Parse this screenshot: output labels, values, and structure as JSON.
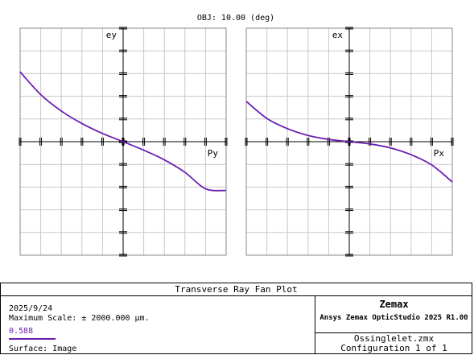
{
  "header": {
    "field_label": "OBJ: 10.00 (deg)"
  },
  "colors": {
    "curve": "#6a1fb0",
    "grid": "#c8c8c8",
    "axis": "#000000"
  },
  "chart_data": [
    {
      "type": "line",
      "title": "",
      "xlabel": "Py",
      "ylabel": "ey",
      "xlim": [
        -1,
        1
      ],
      "ylim": [
        -2000,
        2000
      ],
      "grid": true,
      "series": [
        {
          "name": "0.588",
          "x": [
            -1.0,
            -0.8,
            -0.6,
            -0.4,
            -0.2,
            0.0,
            0.2,
            0.4,
            0.6,
            0.8,
            1.0
          ],
          "y": [
            1230,
            830,
            540,
            320,
            145,
            0,
            -150,
            -320,
            -540,
            -830,
            -860
          ]
        }
      ]
    },
    {
      "type": "line",
      "title": "",
      "xlabel": "Px",
      "ylabel": "ex",
      "xlim": [
        -1,
        1
      ],
      "ylim": [
        -2000,
        2000
      ],
      "grid": true,
      "series": [
        {
          "name": "0.588",
          "x": [
            -1.0,
            -0.8,
            -0.6,
            -0.4,
            -0.2,
            0.0,
            0.2,
            0.4,
            0.6,
            0.8,
            1.0
          ],
          "y": [
            710,
            410,
            230,
            110,
            40,
            0,
            -40,
            -110,
            -230,
            -410,
            -710
          ]
        }
      ]
    }
  ],
  "info": {
    "title": "Transverse Ray Fan Plot",
    "date": "2025/9/24",
    "max_scale": "Maximum Scale: ± 2000.000 µm.",
    "legend_label": "0.588",
    "surface": "Surface: Image",
    "brand": "Zemax",
    "product": "Ansys Zemax OpticStudio 2025 R1.00",
    "file": "Ossinglelet.zmx",
    "configuration": "Configuration 1 of 1"
  }
}
